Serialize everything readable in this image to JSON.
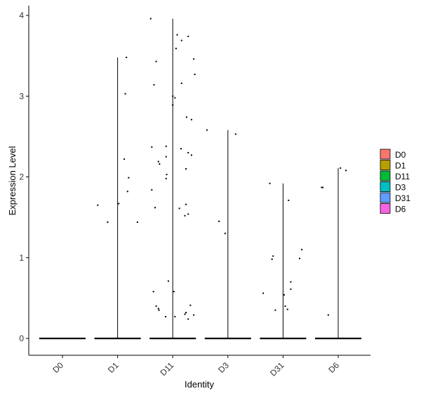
{
  "chart_data": {
    "type": "violin",
    "xlabel": "Identity",
    "ylabel": "Expression Level",
    "ylim": [
      -0.2,
      4.1
    ],
    "yticks": [
      0,
      1,
      2,
      3,
      4
    ],
    "categories": [
      "D0",
      "D1",
      "D11",
      "D3",
      "D31",
      "D6"
    ],
    "legend": {
      "position": "right",
      "items": [
        {
          "name": "D0",
          "color": "#F8766D"
        },
        {
          "name": "D1",
          "color": "#B79F00"
        },
        {
          "name": "D11",
          "color": "#00BA38"
        },
        {
          "name": "D3",
          "color": "#00BFC4"
        },
        {
          "name": "D31",
          "color": "#619CFF"
        },
        {
          "name": "D6",
          "color": "#F564E3"
        }
      ]
    },
    "series": [
      {
        "name": "D0",
        "max": 0,
        "points": []
      },
      {
        "name": "D1",
        "max": 3.48,
        "points": [
          {
            "x": -0.36,
            "y": 1.65
          },
          {
            "x": -0.18,
            "y": 1.44
          },
          {
            "x": 0.02,
            "y": 1.67
          },
          {
            "x": 0.14,
            "y": 3.03
          },
          {
            "x": 0.16,
            "y": 3.48
          },
          {
            "x": 0.12,
            "y": 2.22
          },
          {
            "x": 0.2,
            "y": 1.99
          },
          {
            "x": 0.18,
            "y": 1.82
          },
          {
            "x": 0.36,
            "y": 1.44
          }
        ]
      },
      {
        "name": "D11",
        "max": 3.96,
        "points": [
          {
            "x": -0.4,
            "y": 3.96
          },
          {
            "x": -0.3,
            "y": 3.43
          },
          {
            "x": -0.34,
            "y": 3.14
          },
          {
            "x": -0.38,
            "y": 2.37
          },
          {
            "x": -0.26,
            "y": 2.19
          },
          {
            "x": -0.24,
            "y": 2.16
          },
          {
            "x": -0.12,
            "y": 2.38
          },
          {
            "x": -0.12,
            "y": 2.25
          },
          {
            "x": -0.11,
            "y": 2.03
          },
          {
            "x": -0.12,
            "y": 1.98
          },
          {
            "x": -0.38,
            "y": 1.84
          },
          {
            "x": -0.32,
            "y": 1.62
          },
          {
            "x": -0.35,
            "y": 0.58
          },
          {
            "x": -0.3,
            "y": 0.4
          },
          {
            "x": -0.26,
            "y": 0.37
          },
          {
            "x": -0.25,
            "y": 0.35
          },
          {
            "x": -0.13,
            "y": 0.27
          },
          {
            "x": -0.08,
            "y": 0.71
          },
          {
            "x": 0.0,
            "y": 2.89
          },
          {
            "x": 0.0,
            "y": 3.0
          },
          {
            "x": 0.04,
            "y": 2.98
          },
          {
            "x": 0.06,
            "y": 3.59
          },
          {
            "x": 0.08,
            "y": 3.76
          },
          {
            "x": 0.16,
            "y": 3.69
          },
          {
            "x": 0.28,
            "y": 3.74
          },
          {
            "x": 0.38,
            "y": 3.46
          },
          {
            "x": 0.4,
            "y": 3.27
          },
          {
            "x": 0.16,
            "y": 3.16
          },
          {
            "x": 0.25,
            "y": 2.74
          },
          {
            "x": 0.34,
            "y": 2.71
          },
          {
            "x": 0.15,
            "y": 2.35
          },
          {
            "x": 0.28,
            "y": 2.3
          },
          {
            "x": 0.34,
            "y": 2.27
          },
          {
            "x": 0.24,
            "y": 2.1
          },
          {
            "x": 0.24,
            "y": 1.66
          },
          {
            "x": 0.12,
            "y": 1.61
          },
          {
            "x": 0.22,
            "y": 1.52
          },
          {
            "x": 0.28,
            "y": 1.54
          },
          {
            "x": 0.02,
            "y": 0.58
          },
          {
            "x": 0.04,
            "y": 0.27
          },
          {
            "x": 0.22,
            "y": 0.3
          },
          {
            "x": 0.24,
            "y": 0.32
          },
          {
            "x": 0.28,
            "y": 0.24
          },
          {
            "x": 0.32,
            "y": 0.41
          },
          {
            "x": 0.38,
            "y": 0.29
          }
        ]
      },
      {
        "name": "D3",
        "max": 2.58,
        "points": [
          {
            "x": -0.38,
            "y": 2.58
          },
          {
            "x": 0.14,
            "y": 2.53
          },
          {
            "x": -0.16,
            "y": 1.45
          },
          {
            "x": -0.05,
            "y": 1.3
          }
        ]
      },
      {
        "name": "D31",
        "max": 1.92,
        "points": [
          {
            "x": -0.24,
            "y": 1.92
          },
          {
            "x": 0.1,
            "y": 1.71
          },
          {
            "x": 0.34,
            "y": 1.1
          },
          {
            "x": -0.18,
            "y": 1.02
          },
          {
            "x": -0.2,
            "y": 0.98
          },
          {
            "x": 0.3,
            "y": 0.99
          },
          {
            "x": 0.14,
            "y": 0.7
          },
          {
            "x": 0.14,
            "y": 0.61
          },
          {
            "x": -0.36,
            "y": 0.56
          },
          {
            "x": 0.02,
            "y": 0.54
          },
          {
            "x": 0.04,
            "y": 0.4
          },
          {
            "x": 0.08,
            "y": 0.36
          },
          {
            "x": -0.14,
            "y": 0.35
          }
        ]
      },
      {
        "name": "D6",
        "max": 2.11,
        "points": [
          {
            "x": -0.3,
            "y": 1.87
          },
          {
            "x": -0.28,
            "y": 1.87
          },
          {
            "x": 0.04,
            "y": 2.11
          },
          {
            "x": 0.14,
            "y": 2.08
          },
          {
            "x": -0.18,
            "y": 0.29
          }
        ]
      }
    ]
  }
}
